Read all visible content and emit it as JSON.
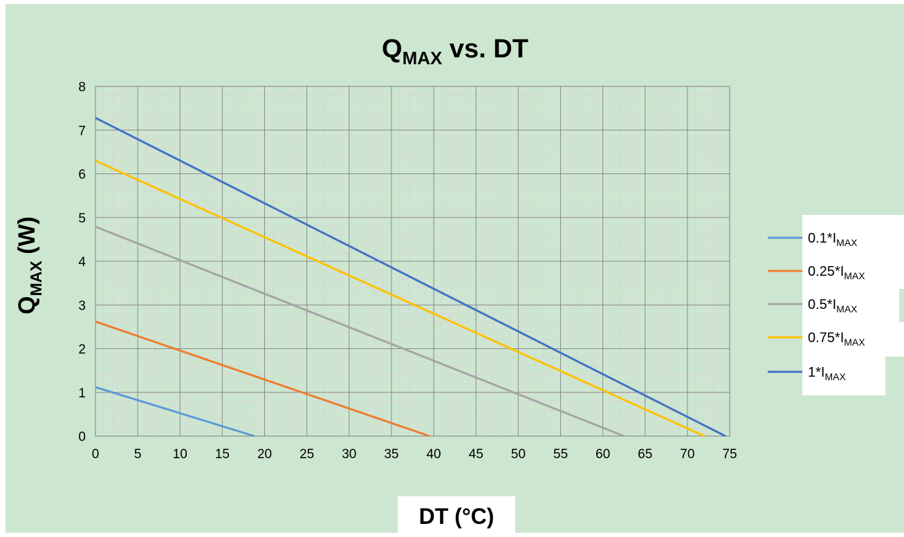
{
  "chart_data": {
    "type": "line",
    "title": {
      "main": "Q",
      "sub": "MAX",
      "rest": " vs. DT"
    },
    "xlabel": "DT (°C)",
    "ylabel": {
      "main": "Q",
      "sub": "MAX",
      "rest": " (W)"
    },
    "xlim": [
      0,
      75
    ],
    "ylim": [
      0,
      8
    ],
    "x_ticks": [
      "0",
      "5",
      "10",
      "15",
      "20",
      "25",
      "30",
      "35",
      "40",
      "45",
      "50",
      "55",
      "60",
      "65",
      "70",
      "75"
    ],
    "y_ticks": [
      "0",
      "1",
      "2",
      "3",
      "4",
      "5",
      "6",
      "7",
      "8"
    ],
    "grid": true,
    "legend_position": "right",
    "series": [
      {
        "name": "0.1*IMAX",
        "label_main": "0.1*I",
        "label_sub": "MAX",
        "color": "#5b9bd5",
        "x": [
          0,
          18.8
        ],
        "y": [
          1.12,
          0
        ]
      },
      {
        "name": "0.25*IMAX",
        "label_main": "0.25*I",
        "label_sub": "MAX",
        "color": "#ed7d31",
        "x": [
          0,
          39.5
        ],
        "y": [
          2.62,
          0
        ]
      },
      {
        "name": "0.5*IMAX",
        "label_main": "0.5*I",
        "label_sub": "MAX",
        "color": "#a5a5a5",
        "x": [
          0,
          62.5
        ],
        "y": [
          4.79,
          0
        ]
      },
      {
        "name": "0.75*IMAX",
        "label_main": "0.75*I",
        "label_sub": "MAX",
        "color": "#ffc000",
        "x": [
          0,
          72
        ],
        "y": [
          6.3,
          0
        ]
      },
      {
        "name": "1*IMAX",
        "label_main": "1*I",
        "label_sub": "MAX",
        "color": "#4472c4",
        "x": [
          0,
          74.5
        ],
        "y": [
          7.28,
          0
        ]
      }
    ]
  }
}
